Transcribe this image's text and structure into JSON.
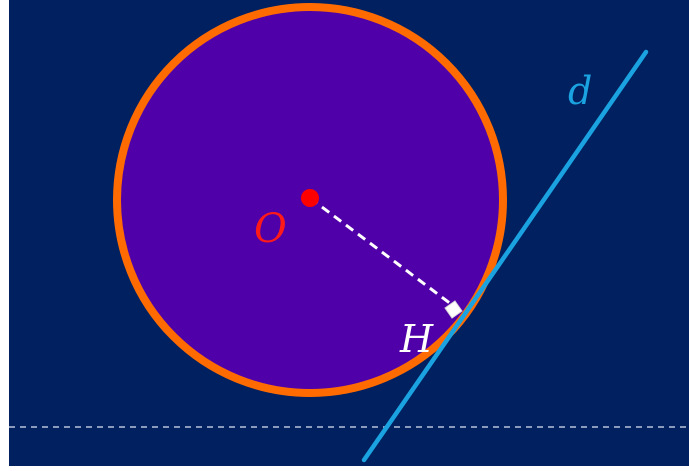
{
  "labels": {
    "center": "O",
    "tangent_point": "H",
    "line": "d"
  },
  "colors": {
    "background": "#002060",
    "circle_fill": "#5000a8",
    "circle_stroke": "#ff6b00",
    "center_point": "#ff0000",
    "center_label": "#ff1a1a",
    "tangent_line": "#1aa3e0",
    "radius_dash": "#ffffff",
    "tangent_label": "#ffffff",
    "baseline_dash": "#b8c4dc"
  }
}
